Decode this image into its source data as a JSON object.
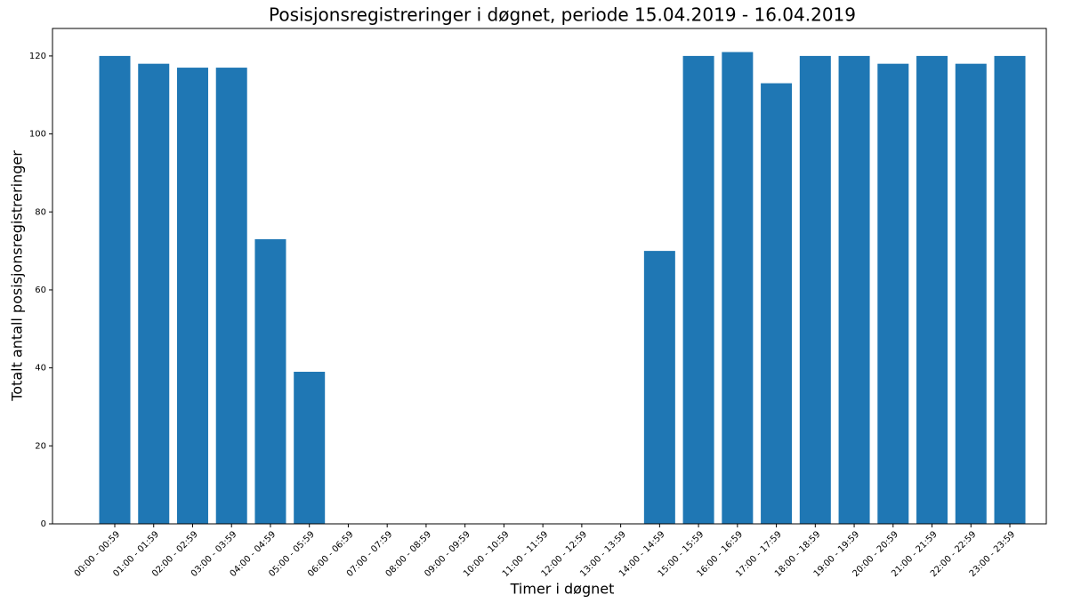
{
  "chart_data": {
    "type": "bar",
    "title": "Posisjonsregistreringer i døgnet, periode 15.04.2019 - 16.04.2019",
    "x_label": "Timer i døgnet",
    "y_label": "Totalt antall posisjonsregistreringer",
    "categories": [
      "00:00 - 00:59",
      "01:00 - 01:59",
      "02:00 - 02:59",
      "03:00 - 03:59",
      "04:00 - 04:59",
      "05:00 - 05:59",
      "06:00 - 06:59",
      "07:00 - 07:59",
      "08:00 - 08:59",
      "09:00 - 09:59",
      "10:00 - 10:59",
      "11:00 - 11:59",
      "12:00 - 12:59",
      "13:00 - 13:59",
      "14:00 - 14:59",
      "15:00 - 15:59",
      "16:00 - 16:59",
      "17:00 - 17:59",
      "18:00 - 18:59",
      "19:00 - 19:59",
      "20:00 - 20:59",
      "21:00 - 21:59",
      "22:00 - 22:59",
      "23:00 - 23:59"
    ],
    "values": [
      120,
      118,
      117,
      117,
      73,
      39,
      0,
      0,
      0,
      0,
      0,
      0,
      0,
      0,
      70,
      120,
      121,
      113,
      120,
      120,
      118,
      120,
      118,
      120
    ],
    "color": "#1f77b4",
    "ylim": [
      0,
      127.05
    ],
    "yticks": [
      0,
      20,
      40,
      60,
      80,
      100,
      120
    ],
    "grid": false
  }
}
